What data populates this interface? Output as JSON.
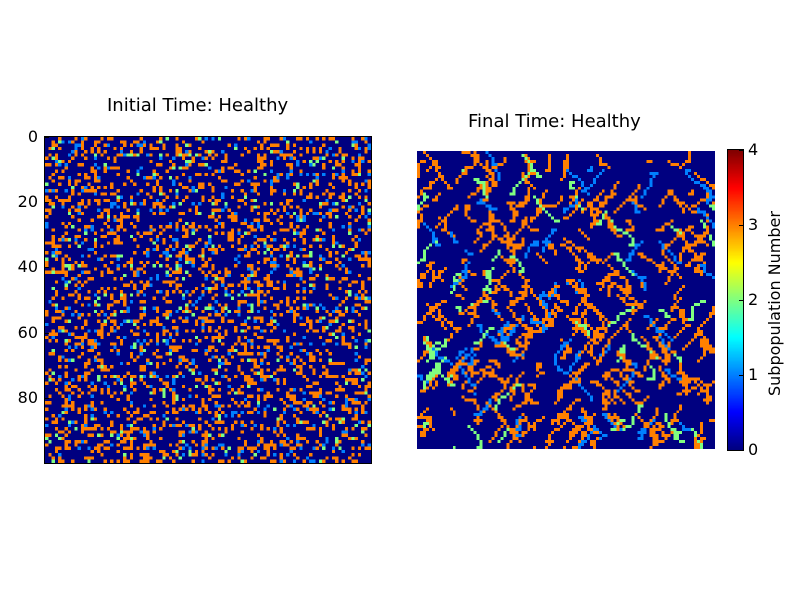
{
  "chart_data": [
    {
      "type": "heatmap",
      "title": "Initial Time: Healthy",
      "grid_size": [
        100,
        100
      ],
      "y_ticks": [
        "0",
        "20",
        "40",
        "60",
        "80"
      ],
      "value_range": [
        0,
        4
      ],
      "composition": {
        "0": 0.7,
        "1": 0.05,
        "2": 0.03,
        "3": 0.22
      },
      "pattern": "scattered single cells"
    },
    {
      "type": "heatmap",
      "title": "Final Time: Healthy",
      "grid_size": [
        100,
        100
      ],
      "value_range": [
        0,
        4
      ],
      "composition": {
        "0": 0.75,
        "1": 0.04,
        "2": 0.03,
        "3": 0.18
      },
      "pattern": "clustered streaks",
      "colorbar": {
        "label": "Subpopulation Number",
        "ticks": [
          "0",
          "1",
          "2",
          "3",
          "4"
        ],
        "colormap": "jet"
      }
    }
  ]
}
